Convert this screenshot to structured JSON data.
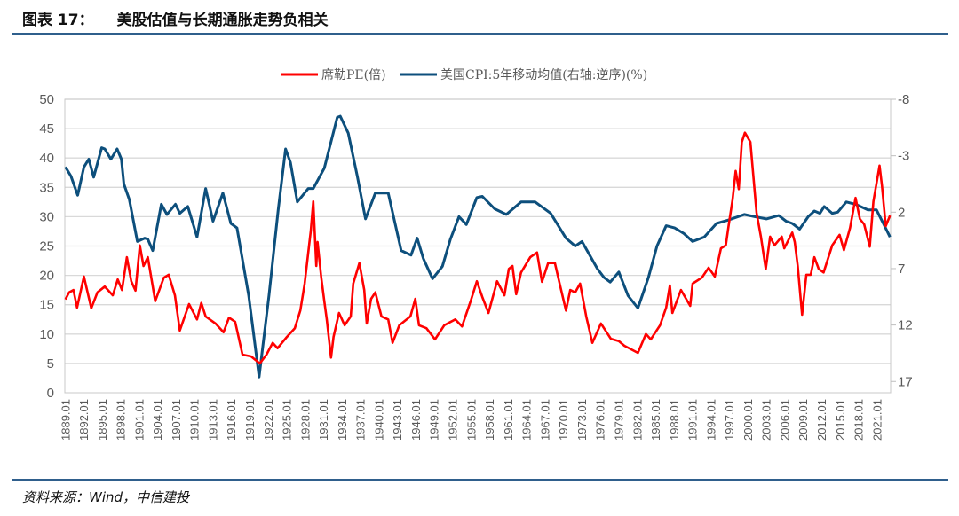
{
  "header": {
    "figure_number": "图表 17：",
    "title": "美股估值与长期通胀走势负相关"
  },
  "footer": {
    "source": "资料来源：Wind，中信建投"
  },
  "colors": {
    "pe": "#ff0000",
    "cpi": "#0d4f7c",
    "rule": "#2f5f8c",
    "grid": "#d9d9d9"
  },
  "chart_data": {
    "type": "line",
    "title": "美股估值与长期通胀走势负相关",
    "xlabel": "",
    "ylabel": "",
    "y2label": "",
    "xlim": [
      1888.9,
      2023.2
    ],
    "ylim": [
      0,
      50
    ],
    "y2lim": [
      -8,
      18
    ],
    "y2_inverted": true,
    "grid": true,
    "legend_position": "top-center",
    "y_ticks": [
      "0",
      "5",
      "10",
      "15",
      "20",
      "25",
      "30",
      "35",
      "40",
      "45",
      "50"
    ],
    "y2_ticks": [
      "-8",
      "-3",
      "2",
      "7",
      "12",
      "17"
    ],
    "x_tick_labels": [
      "1889.01",
      "1892.01",
      "1895.01",
      "1898.01",
      "1901.01",
      "1904.01",
      "1907.01",
      "1910.01",
      "1913.01",
      "1916.01",
      "1919.01",
      "1922.01",
      "1925.01",
      "1928.01",
      "1931.01",
      "1934.01",
      "1937.01",
      "1940.01",
      "1943.01",
      "1946.01",
      "1949.01",
      "1952.01",
      "1955.01",
      "1958.01",
      "1961.01",
      "1964.01",
      "1967.01",
      "1970.01",
      "1973.01",
      "1976.01",
      "1979.01",
      "1982.01",
      "1985.01",
      "1988.01",
      "1991.01",
      "1994.01",
      "1997.01",
      "2000.01",
      "2003.01",
      "2006.01",
      "2009.01",
      "2012.01",
      "2015.01",
      "2018.01",
      "2021.01"
    ],
    "series": [
      {
        "name": "席勒PE(倍)",
        "axis": "left",
        "points": [
          [
            1889.0,
            15.9
          ],
          [
            1889.6,
            17.1
          ],
          [
            1890.3,
            17.5
          ],
          [
            1890.9,
            14.5
          ],
          [
            1892.0,
            19.8
          ],
          [
            1893.2,
            14.4
          ],
          [
            1894.2,
            17.1
          ],
          [
            1895.4,
            18.1
          ],
          [
            1896.7,
            16.6
          ],
          [
            1897.5,
            19.3
          ],
          [
            1898.2,
            17.5
          ],
          [
            1899.0,
            23.1
          ],
          [
            1899.7,
            19.0
          ],
          [
            1900.4,
            17.4
          ],
          [
            1901.1,
            25.1
          ],
          [
            1901.7,
            21.6
          ],
          [
            1902.4,
            23.1
          ],
          [
            1903.6,
            15.6
          ],
          [
            1905.0,
            19.6
          ],
          [
            1905.8,
            20.1
          ],
          [
            1906.8,
            16.6
          ],
          [
            1907.6,
            10.6
          ],
          [
            1909.1,
            15.1
          ],
          [
            1910.4,
            12.5
          ],
          [
            1911.1,
            15.3
          ],
          [
            1911.8,
            13.0
          ],
          [
            1913.4,
            11.8
          ],
          [
            1914.7,
            10.3
          ],
          [
            1915.6,
            12.8
          ],
          [
            1916.6,
            12.1
          ],
          [
            1917.8,
            6.5
          ],
          [
            1919.2,
            6.2
          ],
          [
            1920.6,
            5.0
          ],
          [
            1921.7,
            6.5
          ],
          [
            1922.7,
            8.5
          ],
          [
            1923.5,
            7.6
          ],
          [
            1925.0,
            9.5
          ],
          [
            1926.3,
            11.0
          ],
          [
            1927.2,
            14.0
          ],
          [
            1927.9,
            18.6
          ],
          [
            1928.9,
            27.6
          ],
          [
            1929.3,
            32.6
          ],
          [
            1929.8,
            21.6
          ],
          [
            1930.0,
            25.7
          ],
          [
            1930.6,
            19.6
          ],
          [
            1931.1,
            15.6
          ],
          [
            1931.5,
            12.5
          ],
          [
            1932.2,
            6.0
          ],
          [
            1932.6,
            9.5
          ],
          [
            1933.5,
            13.6
          ],
          [
            1934.4,
            11.5
          ],
          [
            1935.4,
            13.0
          ],
          [
            1935.8,
            18.6
          ],
          [
            1936.8,
            22.1
          ],
          [
            1937.6,
            17.5
          ],
          [
            1938.0,
            11.8
          ],
          [
            1938.7,
            16.0
          ],
          [
            1939.4,
            17.1
          ],
          [
            1940.4,
            13.0
          ],
          [
            1941.5,
            12.5
          ],
          [
            1942.2,
            8.5
          ],
          [
            1943.3,
            11.5
          ],
          [
            1945.1,
            13.0
          ],
          [
            1945.9,
            16.0
          ],
          [
            1946.5,
            11.5
          ],
          [
            1947.7,
            11.0
          ],
          [
            1949.1,
            9.1
          ],
          [
            1950.6,
            11.5
          ],
          [
            1952.4,
            12.5
          ],
          [
            1953.5,
            11.3
          ],
          [
            1954.9,
            15.6
          ],
          [
            1955.9,
            19.0
          ],
          [
            1956.8,
            16.3
          ],
          [
            1957.8,
            13.6
          ],
          [
            1959.2,
            19.0
          ],
          [
            1960.4,
            16.6
          ],
          [
            1961.1,
            21.1
          ],
          [
            1961.7,
            21.6
          ],
          [
            1962.3,
            16.8
          ],
          [
            1963.1,
            20.5
          ],
          [
            1964.6,
            23.1
          ],
          [
            1965.7,
            23.9
          ],
          [
            1966.5,
            18.9
          ],
          [
            1967.5,
            22.1
          ],
          [
            1968.6,
            22.1
          ],
          [
            1969.3,
            18.9
          ],
          [
            1970.4,
            14.0
          ],
          [
            1971.1,
            17.5
          ],
          [
            1971.9,
            17.1
          ],
          [
            1972.7,
            18.6
          ],
          [
            1973.7,
            13.0
          ],
          [
            1974.7,
            8.5
          ],
          [
            1976.1,
            11.8
          ],
          [
            1977.7,
            9.2
          ],
          [
            1979.0,
            8.8
          ],
          [
            1979.9,
            8.0
          ],
          [
            1982.1,
            6.8
          ],
          [
            1983.4,
            10.0
          ],
          [
            1984.2,
            9.1
          ],
          [
            1985.7,
            11.5
          ],
          [
            1986.7,
            14.5
          ],
          [
            1987.3,
            18.3
          ],
          [
            1987.7,
            13.6
          ],
          [
            1989.1,
            17.5
          ],
          [
            1990.6,
            14.8
          ],
          [
            1991.0,
            18.6
          ],
          [
            1992.5,
            19.6
          ],
          [
            1993.6,
            21.3
          ],
          [
            1994.6,
            19.8
          ],
          [
            1995.6,
            24.6
          ],
          [
            1996.4,
            25.1
          ],
          [
            1996.8,
            28.1
          ],
          [
            1997.5,
            32.9
          ],
          [
            1998.0,
            37.8
          ],
          [
            1998.5,
            34.7
          ],
          [
            1999.0,
            42.7
          ],
          [
            1999.5,
            44.3
          ],
          [
            2000.4,
            42.7
          ],
          [
            2000.8,
            37.8
          ],
          [
            2001.4,
            30.7
          ],
          [
            2002.1,
            26.6
          ],
          [
            2002.9,
            21.1
          ],
          [
            2003.6,
            26.6
          ],
          [
            2004.3,
            25.1
          ],
          [
            2005.5,
            26.6
          ],
          [
            2005.9,
            24.6
          ],
          [
            2007.2,
            27.3
          ],
          [
            2007.6,
            25.7
          ],
          [
            2008.1,
            21.6
          ],
          [
            2008.8,
            13.3
          ],
          [
            2009.5,
            20.1
          ],
          [
            2010.2,
            20.1
          ],
          [
            2010.8,
            23.1
          ],
          [
            2011.5,
            21.1
          ],
          [
            2012.3,
            20.5
          ],
          [
            2013.7,
            25.1
          ],
          [
            2014.9,
            26.9
          ],
          [
            2015.6,
            24.3
          ],
          [
            2016.6,
            28.1
          ],
          [
            2017.5,
            33.2
          ],
          [
            2018.2,
            29.6
          ],
          [
            2018.9,
            28.7
          ],
          [
            2019.8,
            24.9
          ],
          [
            2020.4,
            32.6
          ],
          [
            2021.4,
            38.7
          ],
          [
            2021.8,
            35.2
          ],
          [
            2022.4,
            28.4
          ],
          [
            2023.1,
            30.2
          ]
        ]
      },
      {
        "name": "美国CPI:5年移动均值(右轴:逆序)(%)",
        "axis": "right",
        "points": [
          [
            1889.0,
            -2.0
          ],
          [
            1889.9,
            -1.2
          ],
          [
            1891.0,
            0.5
          ],
          [
            1892.0,
            -2.0
          ],
          [
            1892.8,
            -2.7
          ],
          [
            1893.6,
            -1.1
          ],
          [
            1894.9,
            -3.7
          ],
          [
            1895.4,
            -3.6
          ],
          [
            1896.4,
            -2.7
          ],
          [
            1897.4,
            -3.6
          ],
          [
            1898.1,
            -2.7
          ],
          [
            1898.5,
            -0.5
          ],
          [
            1899.4,
            0.9
          ],
          [
            1900.7,
            4.6
          ],
          [
            1901.9,
            4.3
          ],
          [
            1902.4,
            4.4
          ],
          [
            1903.2,
            5.4
          ],
          [
            1904.6,
            1.3
          ],
          [
            1905.5,
            2.2
          ],
          [
            1906.9,
            1.3
          ],
          [
            1907.6,
            2.1
          ],
          [
            1908.9,
            1.5
          ],
          [
            1910.4,
            4.2
          ],
          [
            1911.8,
            -0.1
          ],
          [
            1913.0,
            2.8
          ],
          [
            1914.6,
            0.3
          ],
          [
            1915.9,
            3.0
          ],
          [
            1916.9,
            3.4
          ],
          [
            1918.8,
            9.4
          ],
          [
            1920.5,
            16.6
          ],
          [
            1922.1,
            9.4
          ],
          [
            1923.6,
            1.8
          ],
          [
            1924.8,
            -3.6
          ],
          [
            1925.6,
            -2.4
          ],
          [
            1926.7,
            1.1
          ],
          [
            1928.5,
            -0.1
          ],
          [
            1929.3,
            -0.1
          ],
          [
            1931.1,
            -1.9
          ],
          [
            1933.2,
            -6.4
          ],
          [
            1933.7,
            -6.5
          ],
          [
            1935.0,
            -5.0
          ],
          [
            1936.5,
            -1.1
          ],
          [
            1937.8,
            2.6
          ],
          [
            1939.4,
            0.3
          ],
          [
            1941.5,
            0.3
          ],
          [
            1943.6,
            5.4
          ],
          [
            1945.2,
            5.8
          ],
          [
            1946.2,
            4.3
          ],
          [
            1947.2,
            6.1
          ],
          [
            1948.7,
            7.9
          ],
          [
            1950.3,
            6.8
          ],
          [
            1951.6,
            4.4
          ],
          [
            1953.0,
            2.4
          ],
          [
            1954.2,
            3.1
          ],
          [
            1955.9,
            0.7
          ],
          [
            1956.8,
            0.6
          ],
          [
            1958.8,
            1.7
          ],
          [
            1960.7,
            2.2
          ],
          [
            1963.1,
            1.1
          ],
          [
            1965.4,
            1.1
          ],
          [
            1967.9,
            2.1
          ],
          [
            1970.4,
            4.3
          ],
          [
            1971.9,
            5.0
          ],
          [
            1973.0,
            4.6
          ],
          [
            1975.5,
            7.0
          ],
          [
            1976.6,
            7.8
          ],
          [
            1977.6,
            8.2
          ],
          [
            1979.0,
            7.3
          ],
          [
            1980.5,
            9.4
          ],
          [
            1982.1,
            10.5
          ],
          [
            1983.8,
            7.8
          ],
          [
            1985.2,
            5.0
          ],
          [
            1986.7,
            3.2
          ],
          [
            1988.1,
            3.4
          ],
          [
            1989.6,
            3.9
          ],
          [
            1991.0,
            4.6
          ],
          [
            1992.9,
            4.2
          ],
          [
            1994.9,
            3.0
          ],
          [
            1996.8,
            2.7
          ],
          [
            1999.4,
            2.2
          ],
          [
            2001.1,
            2.4
          ],
          [
            2003.0,
            2.6
          ],
          [
            2005.0,
            2.3
          ],
          [
            2006.2,
            2.8
          ],
          [
            2007.2,
            3.0
          ],
          [
            2008.4,
            3.5
          ],
          [
            2009.8,
            2.4
          ],
          [
            2010.8,
            1.9
          ],
          [
            2011.7,
            2.1
          ],
          [
            2012.4,
            1.5
          ],
          [
            2013.7,
            2.1
          ],
          [
            2014.6,
            2.0
          ],
          [
            2016.0,
            1.1
          ],
          [
            2017.5,
            1.3
          ],
          [
            2019.5,
            1.8
          ],
          [
            2020.9,
            1.8
          ],
          [
            2022.1,
            3.1
          ],
          [
            2023.1,
            4.2
          ]
        ]
      }
    ]
  }
}
